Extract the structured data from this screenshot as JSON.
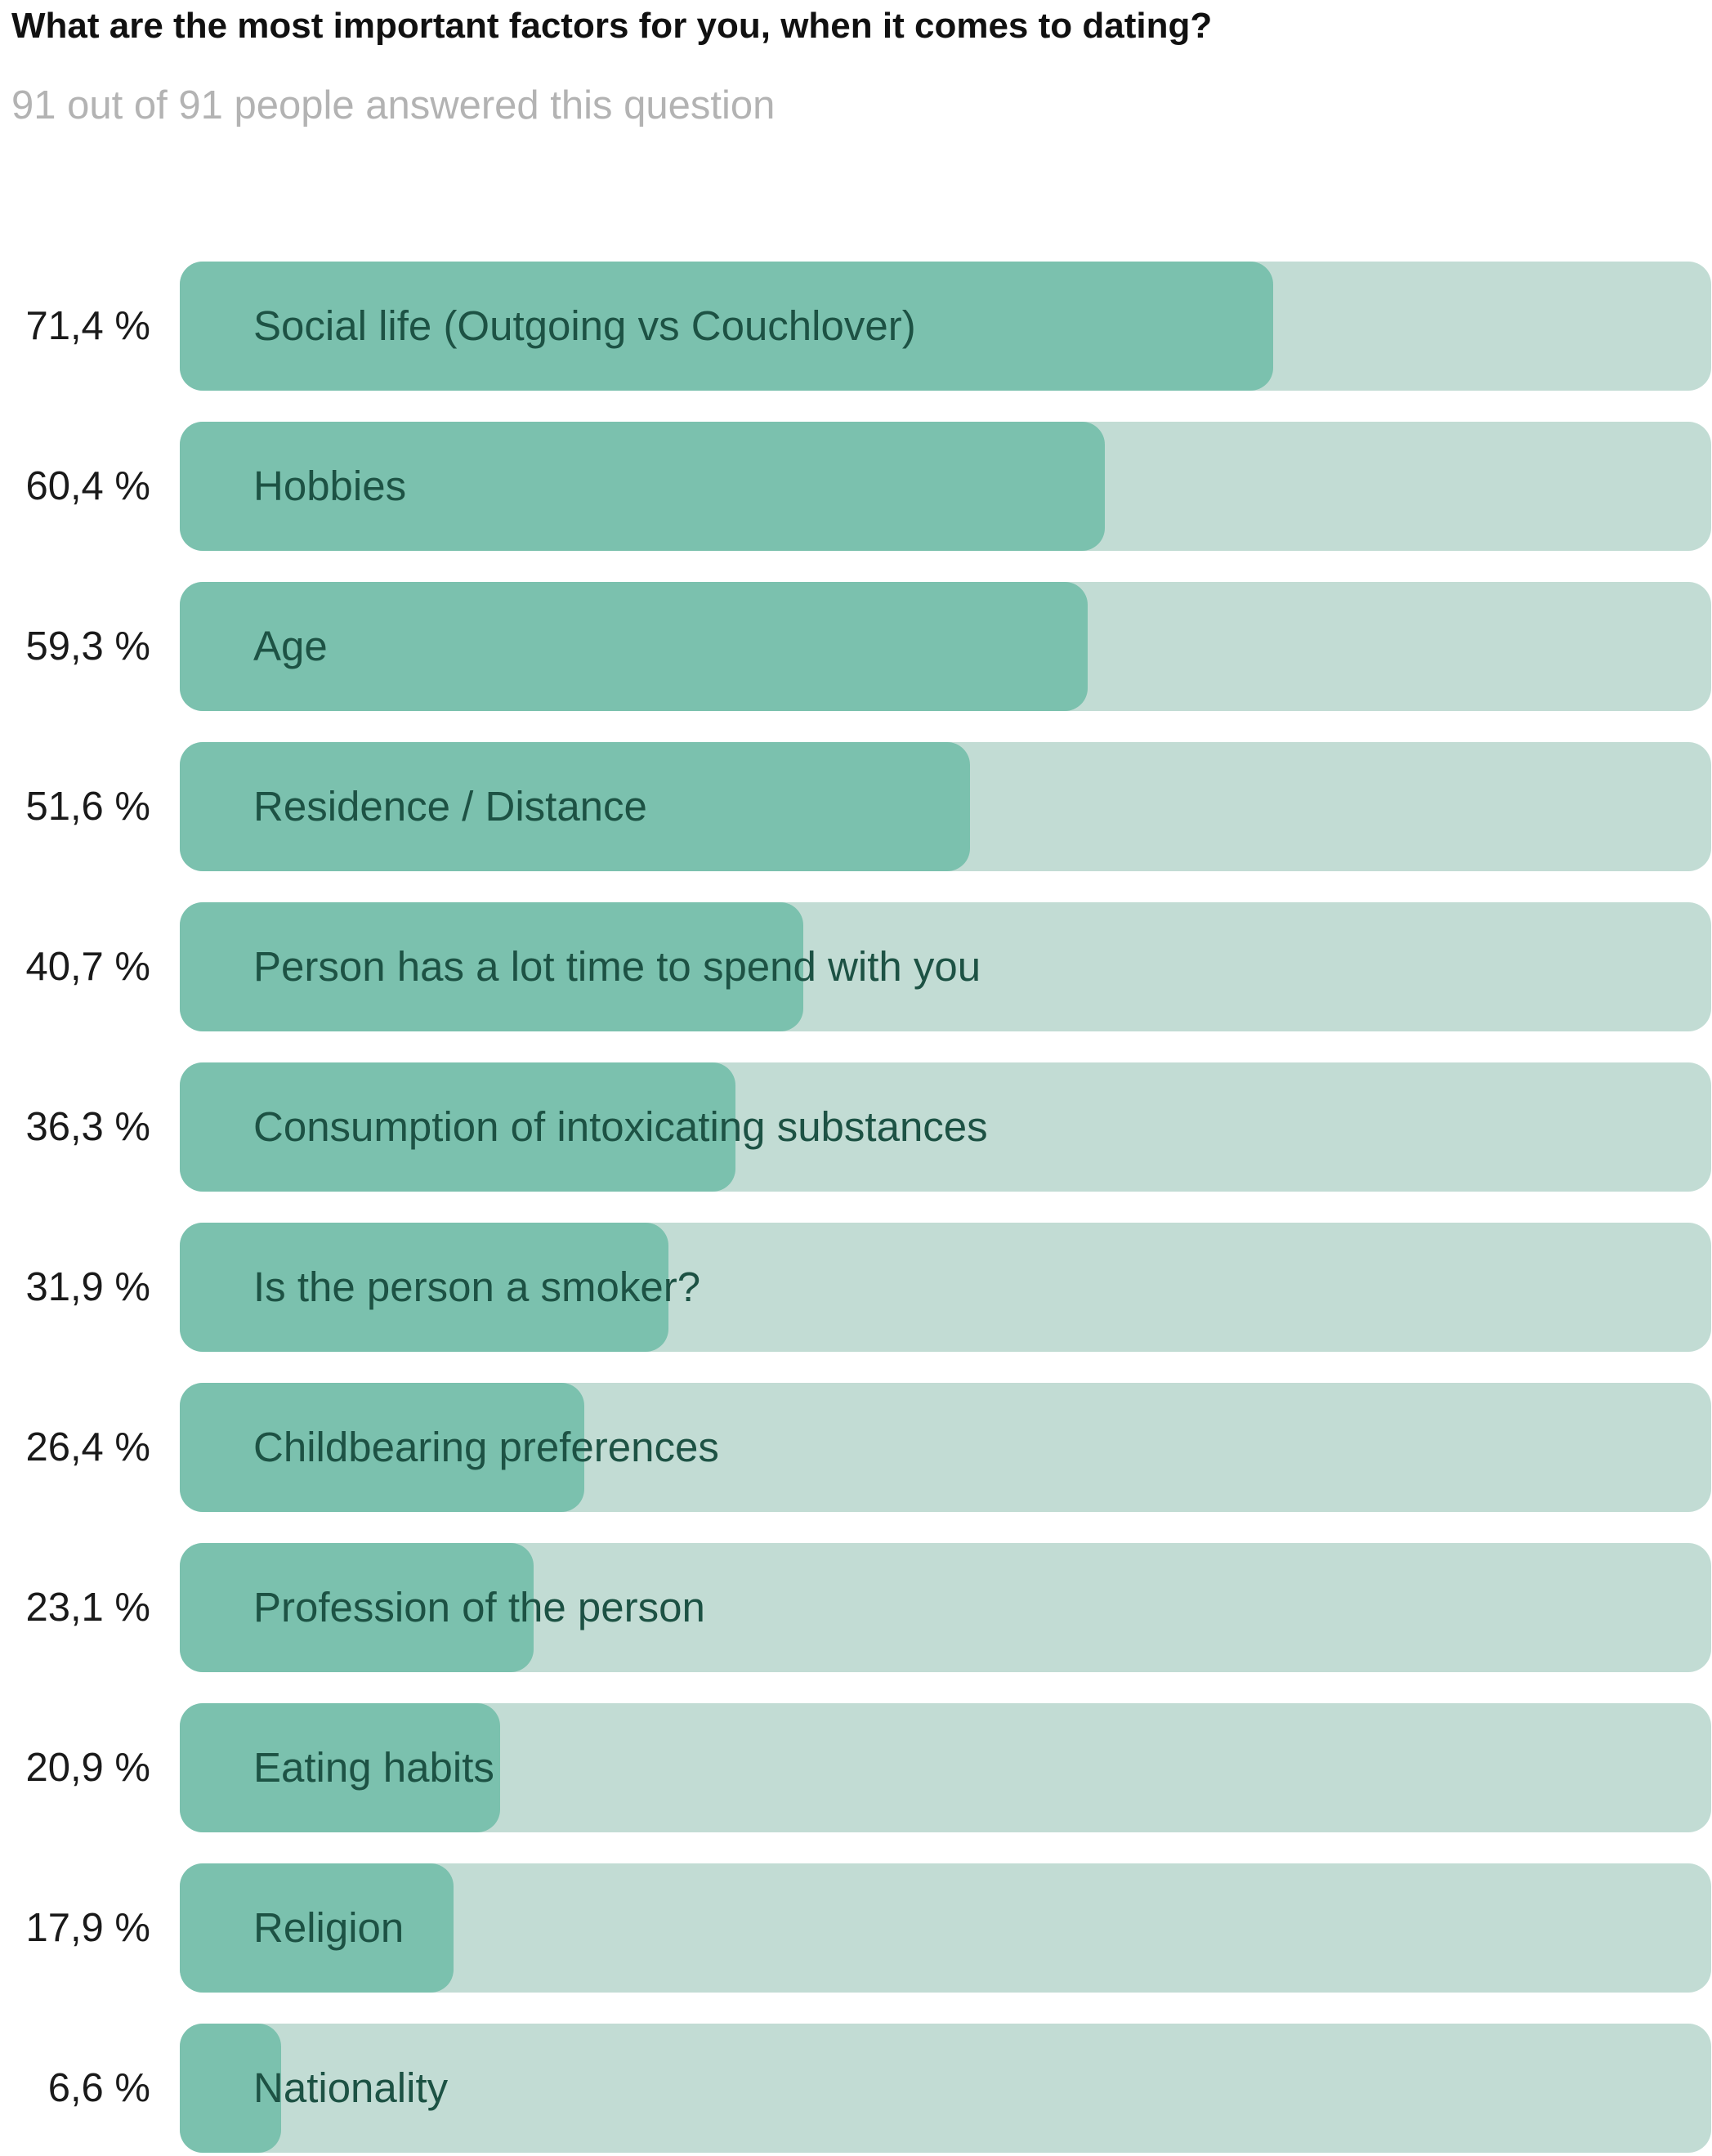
{
  "chart_data": {
    "type": "bar",
    "orientation": "horizontal",
    "title": "What are the most important factors for you, when it comes to dating?",
    "subtitle": "91 out of 91 people answered this question",
    "xlim": [
      0,
      100
    ],
    "categories": [
      "Social life (Outgoing vs Couchlover)",
      "Hobbies",
      "Age",
      "Residence / Distance",
      "Person has a lot time to spend with you",
      "Consumption of intoxicating substances",
      "Is the person a smoker?",
      "Childbearing preferences",
      "Profession of the person",
      "Eating habits",
      "Religion",
      "Nationality"
    ],
    "values": [
      71.4,
      60.4,
      59.3,
      51.6,
      40.7,
      36.3,
      31.9,
      26.4,
      23.1,
      20.9,
      17.9,
      6.6
    ],
    "value_labels": [
      "71,4 %",
      "60,4 %",
      "59,3 %",
      "51,6 %",
      "40,7 %",
      "36,3 %",
      "31,9 %",
      "26,4 %",
      "23,1 %",
      "20,9 %",
      "17,9 %",
      "6,6 %"
    ],
    "colors": {
      "fill": "#7bc1ae",
      "track": "#c2dcd4",
      "label": "#1d5244"
    }
  }
}
